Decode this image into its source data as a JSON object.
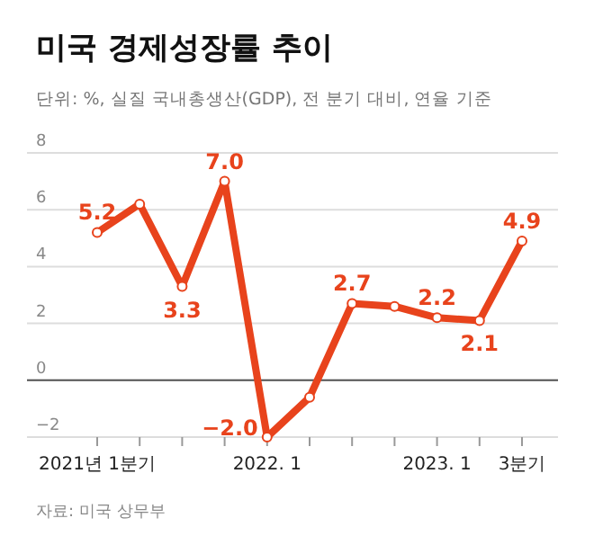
{
  "chart_data": {
    "type": "line",
    "title": "미국 경제성장률 추이",
    "subtitle": "단위: %, 실질 국내총생산(GDP), 전 분기 대비, 연율 기준",
    "categories": [
      "2021년 1분기",
      null,
      null,
      null,
      "2022. 1",
      null,
      null,
      null,
      "2023. 1",
      null,
      "3분기"
    ],
    "series": [
      {
        "color": "#e8431c",
        "values": [
          5.2,
          6.2,
          3.3,
          7.0,
          -2.0,
          -0.6,
          2.7,
          2.6,
          2.2,
          2.1,
          4.9
        ],
        "value_labels": [
          "5.2",
          null,
          "3.3",
          "7.0",
          "−2.0",
          null,
          "2.7",
          null,
          "2.2",
          "2.1",
          "4.9"
        ]
      }
    ],
    "ylim": [
      -2,
      8
    ],
    "yticks": [
      {
        "value": -2,
        "label": "−2"
      },
      0,
      2,
      4,
      6,
      8
    ],
    "grid": "y",
    "marker": "circle",
    "ref_lines": [
      {
        "axis": "y",
        "value": 0,
        "color": "#555555"
      }
    ],
    "annotations": [
      "자료: 미국 상무부"
    ]
  }
}
